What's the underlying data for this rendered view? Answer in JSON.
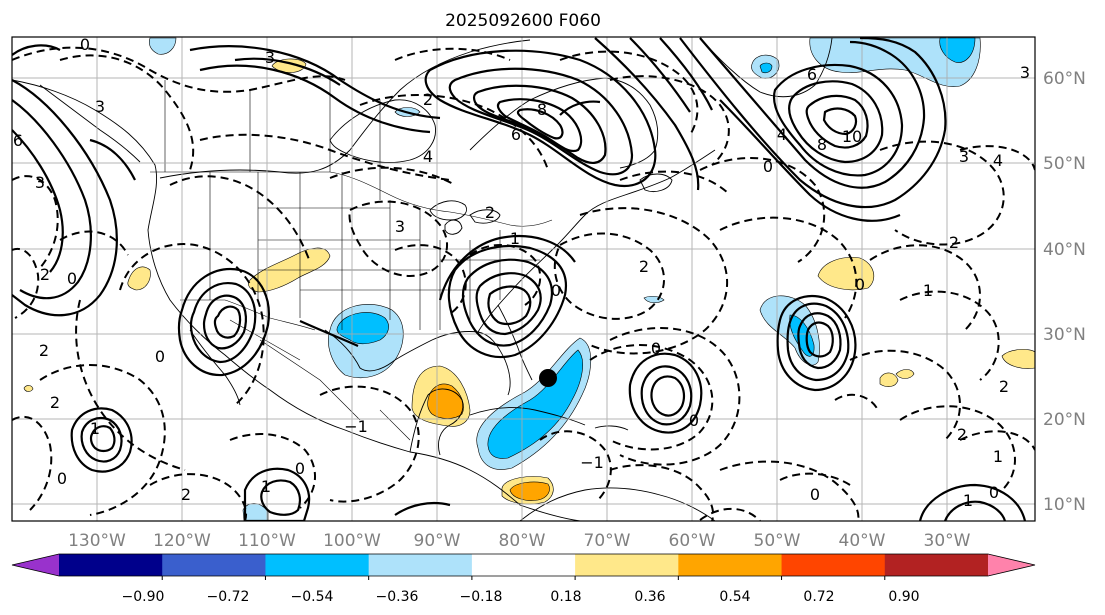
{
  "title": "2025092600 F060",
  "lon_labels": [
    "130°W",
    "120°W",
    "110°W",
    "100°W",
    "90°W",
    "80°W",
    "70°W",
    "60°W",
    "50°W",
    "40°W",
    "30°W"
  ],
  "lat_labels": [
    "60°N",
    "50°N",
    "40°N",
    "30°N",
    "20°N",
    "10°N"
  ],
  "colorbar": {
    "colors": [
      "#9932cc",
      "#00008b",
      "#3a5fcd",
      "#00bfff",
      "#aee2fa",
      "#ffffff",
      "#ffe88a",
      "#ffa500",
      "#ff4500",
      "#b22222",
      "#ff82ab"
    ],
    "tick_labels": [
      "−0.90",
      "−0.72",
      "−0.54",
      "−0.36",
      "−0.18",
      "0.18",
      "0.36",
      "0.54",
      "0.72",
      "0.90"
    ]
  },
  "contour_labels": [
    "0",
    "3",
    "6",
    "3",
    "2",
    "0",
    "2",
    "0",
    "−1",
    "2",
    "1",
    "0",
    "2",
    "1",
    "0",
    "3",
    "2",
    "3",
    "4",
    "8",
    "6",
    "2",
    "1",
    "0",
    "4",
    "8",
    "10",
    "3",
    "6",
    "0",
    "4",
    "3",
    "2",
    "0",
    "1",
    "0",
    "−1",
    "0",
    "2",
    "2",
    "1",
    "0",
    "2",
    "1",
    "0"
  ]
}
